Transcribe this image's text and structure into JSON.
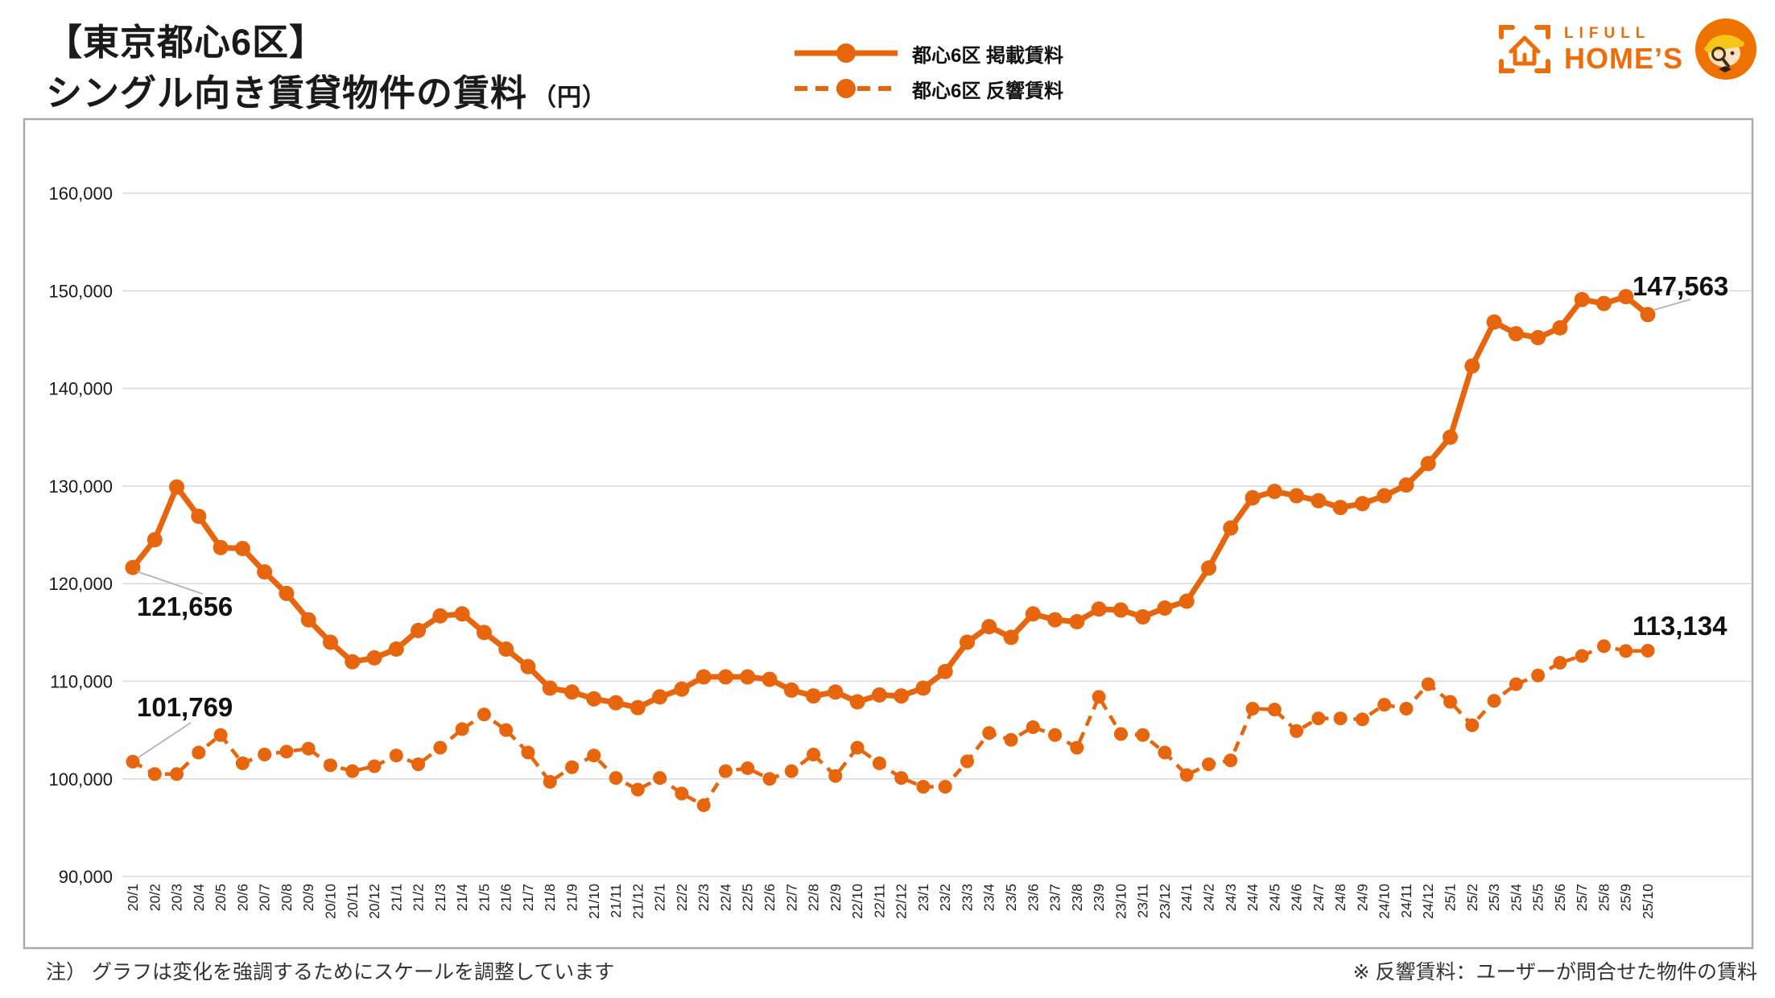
{
  "header": {
    "title_line1": "【東京都心6区】",
    "title_line2": "シングル向き賃貸物件の賃料",
    "title_unit": "（円）",
    "logo": {
      "brand_top": "LIFULL",
      "brand_bottom": "HOME’S"
    }
  },
  "legend": [
    {
      "label": "都心6区 掲載賃料",
      "style": "solid"
    },
    {
      "label": "都心6区 反響賃料",
      "style": "dashed"
    }
  ],
  "notes": {
    "left": "注） グラフは変化を強調するためにスケールを調整しています",
    "right": "※ 反響賃料：ユーザーが問合せた物件の賃料"
  },
  "colors": {
    "accent": "#E7650D",
    "grid": "#DCDCDC",
    "box_border": "#ACACAC",
    "leader": "#B3B3B3",
    "tick_text": "#222222",
    "annotation_text": "#111111"
  },
  "chart_data": {
    "type": "line",
    "x": [
      "20/1",
      "20/2",
      "20/3",
      "20/4",
      "20/5",
      "20/6",
      "20/7",
      "20/8",
      "20/9",
      "20/10",
      "20/11",
      "20/12",
      "21/1",
      "21/2",
      "21/3",
      "21/4",
      "21/5",
      "21/6",
      "21/7",
      "21/8",
      "21/9",
      "21/10",
      "21/11",
      "21/12",
      "22/1",
      "22/2",
      "22/3",
      "22/4",
      "22/5",
      "22/6",
      "22/7",
      "22/8",
      "22/9",
      "22/10",
      "22/11",
      "22/12",
      "23/1",
      "23/2",
      "23/3",
      "23/4",
      "23/5",
      "23/6",
      "23/7",
      "23/8",
      "23/9",
      "23/10",
      "23/11",
      "23/12",
      "24/1",
      "24/2",
      "24/3",
      "24/4",
      "24/5",
      "24/6",
      "24/7",
      "24/8",
      "24/9",
      "24/10",
      "24/11",
      "24/12",
      "25/1",
      "25/2",
      "25/3",
      "25/4",
      "25/5",
      "25/6",
      "25/7",
      "25/8",
      "25/9",
      "25/10"
    ],
    "series": [
      {
        "name": "都心6区 掲載賃料",
        "style": "solid",
        "values": [
          121656,
          124500,
          129900,
          126900,
          123700,
          123600,
          121200,
          119000,
          116300,
          114000,
          112000,
          112400,
          113300,
          115200,
          116700,
          116900,
          115000,
          113300,
          111500,
          109300,
          108900,
          108200,
          107800,
          107300,
          108400,
          109200,
          110450,
          110450,
          110450,
          110200,
          109100,
          108500,
          108900,
          107900,
          108600,
          108500,
          109300,
          111000,
          114000,
          115600,
          114500,
          116900,
          116300,
          116100,
          117400,
          117300,
          116600,
          117500,
          118200,
          121600,
          125700,
          128800,
          129450,
          129000,
          128500,
          127800,
          128200,
          129000,
          130100,
          132300,
          135000,
          142300,
          146800,
          145600,
          145200,
          146200,
          149100,
          148700,
          149400,
          147563
        ]
      },
      {
        "name": "都心6区 反響賃料",
        "style": "dashed",
        "values": [
          101769,
          100500,
          100500,
          102700,
          104500,
          101600,
          102500,
          102800,
          103100,
          101400,
          100800,
          101300,
          102400,
          101500,
          103200,
          105100,
          106600,
          105000,
          102700,
          99700,
          101200,
          102400,
          100100,
          98900,
          100100,
          98500,
          97300,
          100800,
          101100,
          100000,
          100800,
          102500,
          100300,
          103200,
          101600,
          100100,
          99200,
          99200,
          101800,
          104700,
          104000,
          105300,
          104500,
          103200,
          108400,
          104600,
          104500,
          102700,
          100400,
          101500,
          101900,
          107200,
          107100,
          104900,
          106200,
          106200,
          106100,
          107600,
          107200,
          109700,
          107900,
          105500,
          108000,
          109700,
          110600,
          111900,
          112600,
          113600,
          113100,
          113134
        ]
      }
    ],
    "ylim": [
      90000,
      160000
    ],
    "ytick_step": 10000,
    "grid": "horizontal",
    "legend_position": "top-center",
    "annotations": [
      {
        "series": 0,
        "x": "20/1",
        "text": "121,656"
      },
      {
        "series": 1,
        "x": "20/1",
        "text": "101,769"
      },
      {
        "series": 0,
        "x": "25/10",
        "text": "147,563"
      },
      {
        "series": 1,
        "x": "25/10",
        "text": "113,134"
      }
    ]
  }
}
